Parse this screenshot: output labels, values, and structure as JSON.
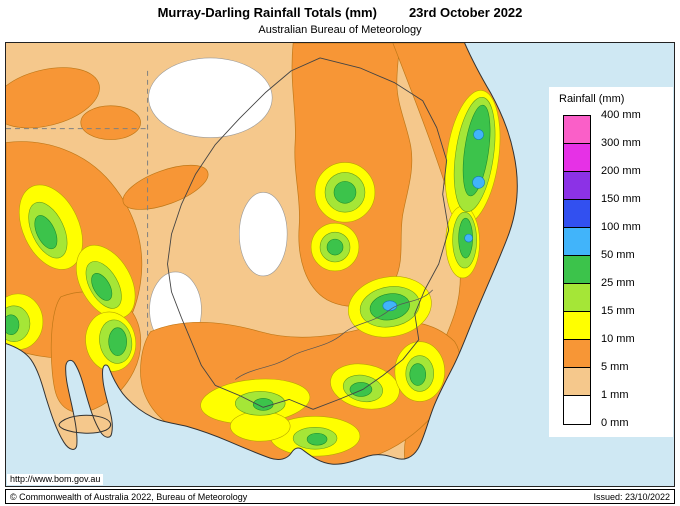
{
  "header": {
    "title": "Murray-Darling Rainfall Totals (mm)",
    "date": "23rd October 2022",
    "subtitle": "Australian Bureau of Meteorology"
  },
  "map": {
    "url_label": "http://www.bom.gov.au"
  },
  "legend": {
    "title": "Rainfall (mm)",
    "labels": [
      "400 mm",
      "300 mm",
      "200 mm",
      "150 mm",
      "100 mm",
      "50 mm",
      "25 mm",
      "15 mm",
      "10 mm",
      "5 mm",
      "1 mm",
      "0 mm"
    ],
    "band_colors": [
      "#fa5fc8",
      "#e631e6",
      "#8c32e6",
      "#3250f0",
      "#41b4fa",
      "#3cc34b",
      "#a5e637",
      "#ffff00",
      "#f79636",
      "#f5c88c",
      "#ffffff"
    ]
  },
  "palette": {
    "ocean": "#cfe8f3",
    "white_0mm": "#ffffff",
    "tan_1mm": "#f5c88c",
    "orange_5mm": "#f79636",
    "yellow_10mm": "#ffff00",
    "lightgreen_15mm": "#a5e637",
    "green_25mm": "#3cc34b",
    "cyan_50mm": "#41b4fa"
  },
  "footer": {
    "copyright": "© Commonwealth of Australia 2022, Bureau of Meteorology",
    "issued": "Issued: 23/10/2022"
  }
}
